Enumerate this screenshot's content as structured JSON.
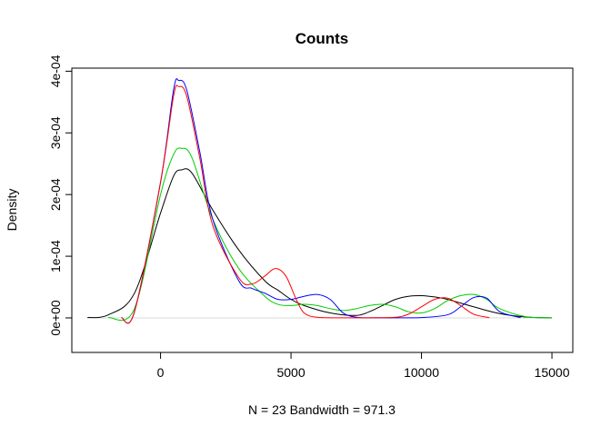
{
  "chart_data": {
    "type": "line",
    "title": "Counts",
    "xlabel": "N = 23   Bandwidth = 971.3",
    "ylabel": "Density",
    "xlim": [
      -3400,
      15800
    ],
    "ylim": [
      -5.6e-05,
      0.000405
    ],
    "x_ticks": [
      0,
      5000,
      10000,
      15000
    ],
    "x_tick_labels": [
      "0",
      "5000",
      "10000",
      "15000"
    ],
    "y_ticks": [
      0,
      0.0001,
      0.0002,
      0.0003,
      0.0004
    ],
    "y_tick_labels": [
      "0e+00",
      "1e-04",
      "2e-04",
      "3e-04",
      "4e-04"
    ],
    "grid": false,
    "legend": "none",
    "series": [
      {
        "color": "#000000",
        "x": [
          -2800,
          -2000,
          -1000,
          0,
          500,
          800,
          1200,
          2000,
          3000,
          4000,
          4500,
          5000,
          5500,
          6500,
          7500,
          8000,
          8500,
          9000,
          9500,
          10000,
          10300,
          10500,
          11000,
          12000,
          13000,
          14000,
          15000
        ],
        "y": [
          5e-07,
          5e-06,
          4e-05,
          0.00017,
          0.00023,
          0.00024,
          0.000235,
          0.000175,
          0.00011,
          6e-05,
          4.5e-05,
          3e-05,
          2e-05,
          8e-06,
          4e-06,
          1e-05,
          2e-05,
          3e-05,
          3.5e-05,
          3.6e-05,
          3.5e-05,
          3.4e-05,
          3e-05,
          1.8e-05,
          7e-06,
          1.5e-06,
          2e-07
        ]
      },
      {
        "color": "#00cd00",
        "x": [
          -2000,
          -1000,
          0,
          500,
          800,
          1200,
          2000,
          3000,
          4000,
          4500,
          5000,
          5500,
          6000,
          6500,
          7000,
          7500,
          8000,
          8500,
          9000,
          9500,
          10000,
          10500,
          11000,
          11500,
          12000,
          12500,
          13000,
          14000,
          15000
        ],
        "y": [
          5e-07,
          1.5e-05,
          0.0002,
          0.000265,
          0.000275,
          0.00026,
          0.00016,
          8e-05,
          3.5e-05,
          2.2e-05,
          2e-05,
          2.2e-05,
          2e-05,
          1.5e-05,
          1.2e-05,
          1.5e-05,
          2e-05,
          2.2e-05,
          1.8e-05,
          1e-05,
          8e-06,
          1.5e-05,
          2.8e-05,
          3.6e-05,
          3.8e-05,
          3e-05,
          1.5e-05,
          2e-06,
          2e-07
        ]
      },
      {
        "color": "#0000ff",
        "x": [
          -1500,
          -1000,
          0,
          500,
          700,
          1000,
          1500,
          2000,
          3000,
          3500,
          4000,
          4500,
          5000,
          5500,
          6000,
          6500,
          7000,
          7500,
          8000,
          9000,
          10000,
          11000,
          11500,
          12000,
          12500,
          13000,
          13800
        ],
        "y": [
          5e-07,
          1e-05,
          0.00022,
          0.00037,
          0.000385,
          0.00037,
          0.00027,
          0.00016,
          6e-05,
          4.8e-05,
          4e-05,
          3e-05,
          3e-05,
          3.5e-05,
          3.8e-05,
          3e-05,
          8e-06,
          1e-06,
          2e-07,
          2e-07,
          5e-07,
          5e-06,
          1.8e-05,
          3.3e-05,
          3.2e-05,
          1e-05,
          5e-07
        ]
      },
      {
        "color": "#ff0000",
        "x": [
          -1500,
          -1000,
          0,
          500,
          700,
          1000,
          1500,
          2000,
          3000,
          3500,
          4000,
          4400,
          4800,
          5200,
          5500,
          6000,
          7000,
          8000,
          9000,
          9500,
          10000,
          10500,
          11000,
          11500,
          12000,
          12600
        ],
        "y": [
          5e-07,
          1e-05,
          0.00022,
          0.00036,
          0.000375,
          0.00036,
          0.00026,
          0.00015,
          6.5e-05,
          5.5e-05,
          6.8e-05,
          8e-05,
          6.8e-05,
          3e-05,
          8e-06,
          1e-06,
          2e-07,
          2e-07,
          1e-06,
          6e-06,
          1.8e-05,
          3e-05,
          3.2e-05,
          2e-05,
          6e-06,
          5e-07
        ]
      }
    ]
  }
}
